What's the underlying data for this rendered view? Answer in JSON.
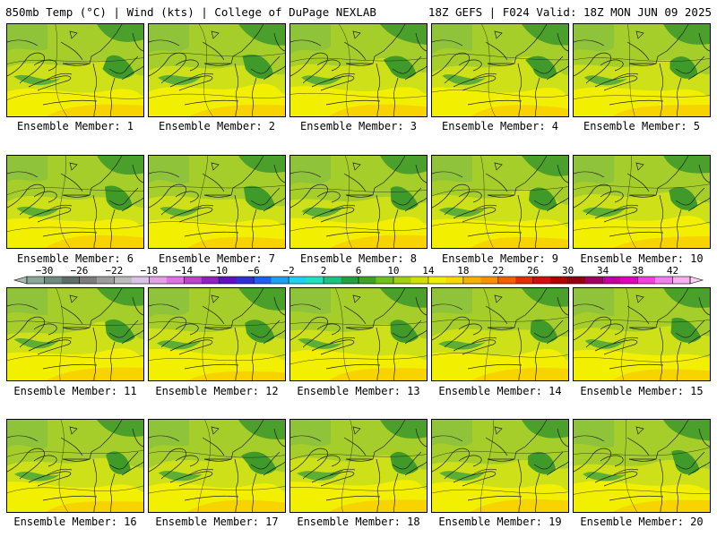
{
  "header": {
    "left": "850mb Temp (°C) | Wind (kts) | College of DuPage NEXLAB",
    "right": "18Z GEFS | F024 Valid: 18Z MON JUN 09 2025"
  },
  "members": [
    "Ensemble Member: 1",
    "Ensemble Member: 2",
    "Ensemble Member: 3",
    "Ensemble Member: 4",
    "Ensemble Member: 5",
    "Ensemble Member: 6",
    "Ensemble Member: 7",
    "Ensemble Member: 8",
    "Ensemble Member: 9",
    "Ensemble Member: 10",
    "Ensemble Member: 11",
    "Ensemble Member: 12",
    "Ensemble Member: 13",
    "Ensemble Member: 14",
    "Ensemble Member: 15",
    "Ensemble Member: 16",
    "Ensemble Member: 17",
    "Ensemble Member: 18",
    "Ensemble Member: 19",
    "Ensemble Member: 20"
  ],
  "colorbar": {
    "ticks": [
      "-30",
      "-26",
      "-22",
      "-18",
      "-14",
      "-10",
      "-6",
      "-2",
      "2",
      "6",
      "10",
      "14",
      "18",
      "22",
      "26",
      "30",
      "34",
      "38",
      "42"
    ],
    "colors": [
      "#8aa89a",
      "#6f8a7e",
      "#5c6c66",
      "#7c7c7c",
      "#9c9c9c",
      "#bcbcbc",
      "#d9c3e6",
      "#e3a0e6",
      "#e070e6",
      "#c040d0",
      "#9020c0",
      "#6010c0",
      "#3030d0",
      "#2060f0",
      "#20a0f0",
      "#20d0f0",
      "#20e0c0",
      "#20c080",
      "#20a040",
      "#40a020",
      "#70c020",
      "#a0d010",
      "#d0e000",
      "#f0f000",
      "#f8d800",
      "#f8b000",
      "#f89000",
      "#f06000",
      "#e03000",
      "#d01010",
      "#b00000",
      "#900010",
      "#a00060",
      "#c000a0",
      "#e000c0",
      "#f040e0",
      "#f080f0",
      "#f8b0f0"
    ]
  }
}
